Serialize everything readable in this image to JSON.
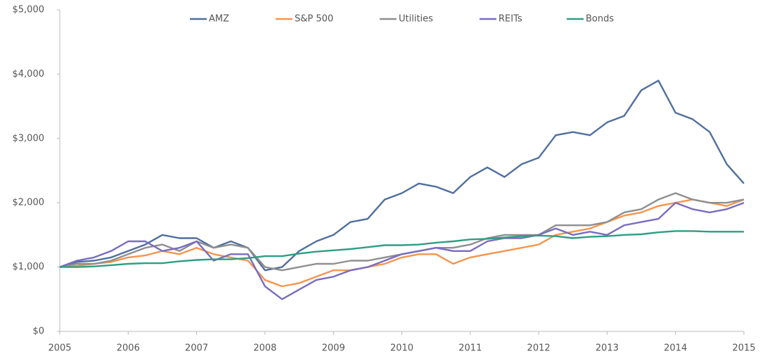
{
  "chart_data": {
    "type": "line",
    "x": [
      2005,
      2005.25,
      2005.5,
      2005.75,
      2006,
      2006.25,
      2006.5,
      2006.75,
      2007,
      2007.25,
      2007.5,
      2007.75,
      2008,
      2008.25,
      2008.5,
      2008.75,
      2009,
      2009.25,
      2009.5,
      2009.75,
      2010,
      2010.25,
      2010.5,
      2010.75,
      2011,
      2011.25,
      2011.5,
      2011.75,
      2012,
      2012.25,
      2012.5,
      2012.75,
      2013,
      2013.25,
      2013.5,
      2013.75,
      2014,
      2014.25,
      2014.5,
      2014.75,
      2015
    ],
    "series": [
      {
        "name": "AMZ",
        "color": "#4f6f9e",
        "values": [
          1000,
          1080,
          1100,
          1150,
          1250,
          1350,
          1500,
          1450,
          1450,
          1300,
          1400,
          1300,
          950,
          1000,
          1250,
          1400,
          1500,
          1700,
          1750,
          2050,
          2150,
          2300,
          2250,
          2150,
          2400,
          2550,
          2400,
          2600,
          2700,
          3050,
          3100,
          3050,
          3250,
          3350,
          3750,
          3900,
          3400,
          3300,
          3100,
          2600,
          2300
        ]
      },
      {
        "name": "S&P 500",
        "color": "#f5954d",
        "values": [
          1000,
          1020,
          1050,
          1080,
          1150,
          1180,
          1250,
          1200,
          1300,
          1200,
          1150,
          1100,
          800,
          700,
          750,
          850,
          950,
          950,
          1000,
          1050,
          1150,
          1200,
          1200,
          1050,
          1150,
          1200,
          1250,
          1300,
          1350,
          1500,
          1550,
          1600,
          1700,
          1800,
          1850,
          1950,
          2000,
          2050,
          2000,
          1950,
          2050
        ]
      },
      {
        "name": "Utilities",
        "color": "#8f8f8f",
        "values": [
          1000,
          1050,
          1050,
          1100,
          1200,
          1300,
          1350,
          1250,
          1400,
          1300,
          1350,
          1300,
          1000,
          950,
          1000,
          1050,
          1050,
          1100,
          1100,
          1150,
          1200,
          1250,
          1300,
          1300,
          1350,
          1450,
          1500,
          1500,
          1500,
          1650,
          1650,
          1650,
          1700,
          1850,
          1900,
          2050,
          2150,
          2050,
          2000,
          2000,
          2050
        ]
      },
      {
        "name": "REITs",
        "color": "#7a6cc0",
        "values": [
          1000,
          1100,
          1150,
          1250,
          1400,
          1400,
          1250,
          1300,
          1400,
          1100,
          1200,
          1200,
          700,
          500,
          650,
          800,
          850,
          950,
          1000,
          1100,
          1200,
          1250,
          1300,
          1250,
          1250,
          1400,
          1450,
          1450,
          1500,
          1600,
          1500,
          1550,
          1500,
          1650,
          1700,
          1750,
          2000,
          1900,
          1850,
          1900,
          2000
        ]
      },
      {
        "name": "Bonds",
        "color": "#2f9e83",
        "values": [
          1000,
          1000,
          1010,
          1030,
          1050,
          1060,
          1060,
          1090,
          1110,
          1120,
          1120,
          1140,
          1170,
          1170,
          1210,
          1240,
          1260,
          1280,
          1310,
          1340,
          1340,
          1350,
          1380,
          1400,
          1430,
          1440,
          1460,
          1480,
          1490,
          1480,
          1450,
          1470,
          1480,
          1500,
          1510,
          1540,
          1560,
          1560,
          1550,
          1550,
          1550
        ]
      }
    ],
    "xlim": [
      2005,
      2015
    ],
    "xticks": [
      2005,
      2006,
      2007,
      2008,
      2009,
      2010,
      2011,
      2012,
      2013,
      2014,
      2015
    ],
    "ylim": [
      0,
      5000
    ],
    "yticks": [
      {
        "value": 0,
        "label": "$0"
      },
      {
        "value": 1000,
        "label": "$1,000"
      },
      {
        "value": 2000,
        "label": "$2,000"
      },
      {
        "value": 3000,
        "label": "$3,000"
      },
      {
        "value": 4000,
        "label": "$4,000"
      },
      {
        "value": 5000,
        "label": "$5,000"
      }
    ],
    "legend": "top"
  }
}
